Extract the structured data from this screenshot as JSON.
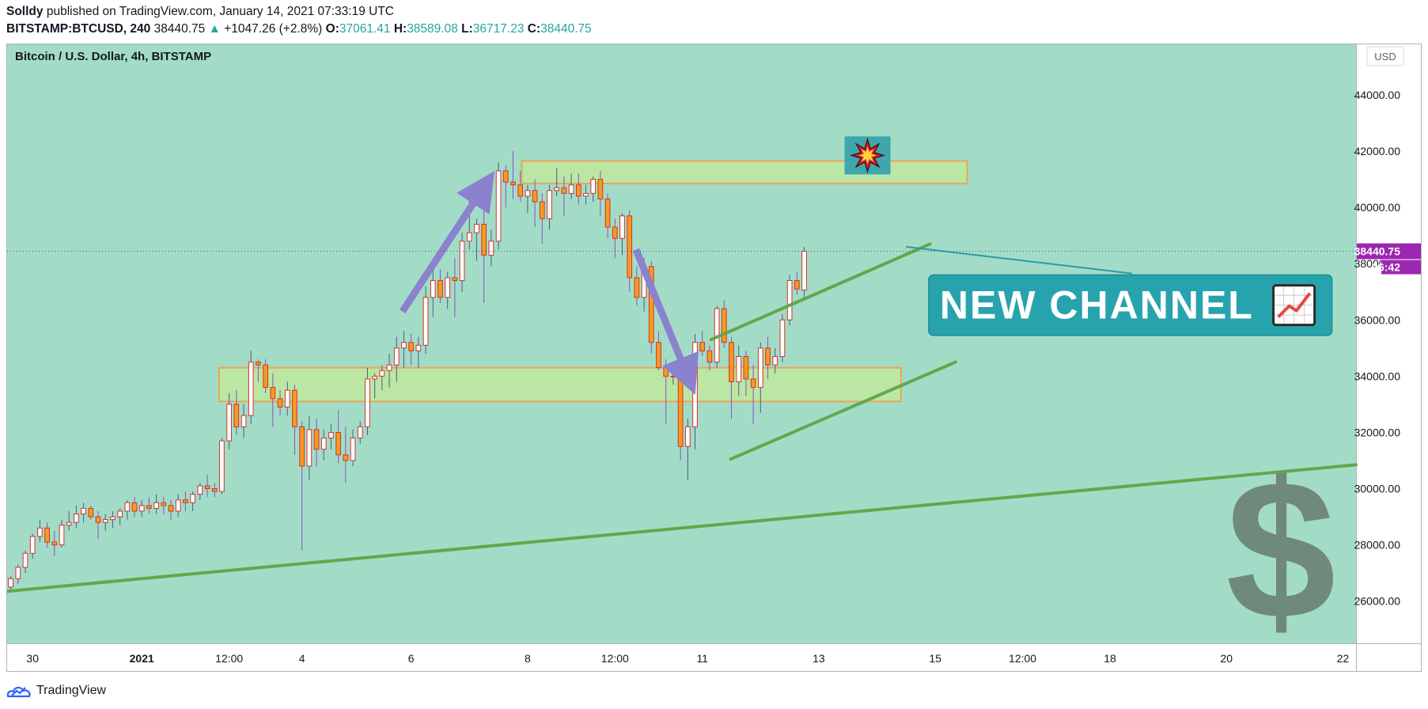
{
  "header": {
    "author": "Solldy",
    "published_text": "published on TradingView.com, January 14, 2021 07:33:19 UTC",
    "symbol": "BITSTAMP:BTCUSD, 240",
    "last": "38440.75",
    "up_arrow": "▲",
    "change": "+1047.26 (+2.8%)",
    "o_label": "O:",
    "o_value": "37061.41",
    "h_label": "H:",
    "h_value": "38589.08",
    "l_label": "L:",
    "l_value": "36717.23",
    "c_label": "C:",
    "c_value": "38440.75"
  },
  "footer": {
    "brand": "TradingView",
    "logo_icon": "tradingview-logo-icon"
  },
  "chart_data": {
    "type": "candlestick",
    "title": "Bitcoin / U.S. Dollar, 4h, BITSTAMP",
    "currency_label": "USD",
    "y_ticks": [
      26000,
      28000,
      30000,
      32000,
      34000,
      36000,
      38000,
      40000,
      42000,
      44000
    ],
    "ylim": [
      24500,
      45800
    ],
    "x_ticks": [
      {
        "label": "30",
        "index": 3
      },
      {
        "label": "2021",
        "index": 18
      },
      {
        "label": "12:00",
        "index": 30
      },
      {
        "label": "4",
        "index": 40
      },
      {
        "label": "6",
        "index": 55
      },
      {
        "label": "8",
        "index": 71
      },
      {
        "label": "12:00",
        "index": 83
      },
      {
        "label": "11",
        "index": 95
      },
      {
        "label": "13",
        "index": 111
      },
      {
        "label": "15",
        "index": 127
      },
      {
        "label": "12:00",
        "index": 139
      },
      {
        "label": "18",
        "index": 151
      },
      {
        "label": "20",
        "index": 167
      },
      {
        "label": "22",
        "index": 183
      }
    ],
    "x_range": [
      -0.5,
      184.8
    ],
    "last_price": 38440.75,
    "last_price_label": "38440.75",
    "countdown_label": "26:42",
    "candles": [
      [
        26500,
        26900,
        26300,
        26800
      ],
      [
        26800,
        27300,
        26600,
        27200
      ],
      [
        27200,
        27800,
        27000,
        27700
      ],
      [
        27700,
        28400,
        27500,
        28300
      ],
      [
        28300,
        28900,
        28100,
        28600
      ],
      [
        28600,
        28800,
        27900,
        28100
      ],
      [
        28100,
        28500,
        27600,
        28000
      ],
      [
        28000,
        28900,
        27900,
        28700
      ],
      [
        28700,
        29200,
        28500,
        28800
      ],
      [
        28800,
        29400,
        28600,
        29100
      ],
      [
        29100,
        29500,
        28800,
        29300
      ],
      [
        29300,
        29400,
        28900,
        29000
      ],
      [
        29000,
        29200,
        28200,
        28800
      ],
      [
        28800,
        29100,
        28500,
        28900
      ],
      [
        28900,
        29200,
        28600,
        29000
      ],
      [
        29000,
        29300,
        28700,
        29200
      ],
      [
        29200,
        29600,
        28900,
        29500
      ],
      [
        29500,
        29700,
        29000,
        29200
      ],
      [
        29200,
        29600,
        29000,
        29400
      ],
      [
        29400,
        29700,
        29100,
        29300
      ],
      [
        29300,
        29800,
        29100,
        29500
      ],
      [
        29500,
        29700,
        29100,
        29400
      ],
      [
        29400,
        29600,
        28900,
        29200
      ],
      [
        29200,
        29800,
        29000,
        29600
      ],
      [
        29600,
        29900,
        29200,
        29500
      ],
      [
        29500,
        29900,
        29200,
        29800
      ],
      [
        29800,
        30200,
        29600,
        30100
      ],
      [
        30100,
        30500,
        29700,
        30000
      ],
      [
        30000,
        30200,
        29700,
        29900
      ],
      [
        29900,
        31800,
        29800,
        31700
      ],
      [
        31700,
        33400,
        31400,
        33000
      ],
      [
        33000,
        33500,
        31900,
        32200
      ],
      [
        32200,
        33000,
        31800,
        32600
      ],
      [
        32600,
        34900,
        32300,
        34500
      ],
      [
        34500,
        34600,
        33800,
        34400
      ],
      [
        34400,
        34600,
        33400,
        33600
      ],
      [
        33600,
        34100,
        32200,
        33200
      ],
      [
        33200,
        33500,
        32600,
        32900
      ],
      [
        32900,
        33800,
        32600,
        33500
      ],
      [
        33500,
        33700,
        31200,
        32200
      ],
      [
        32200,
        32400,
        27800,
        30800
      ],
      [
        30800,
        32600,
        30300,
        32100
      ],
      [
        32100,
        32500,
        30800,
        31400
      ],
      [
        31400,
        32100,
        31000,
        31800
      ],
      [
        31800,
        32300,
        31400,
        32000
      ],
      [
        32000,
        32800,
        30900,
        31200
      ],
      [
        31200,
        32200,
        30200,
        31000
      ],
      [
        31000,
        32100,
        30800,
        31800
      ],
      [
        31800,
        32400,
        31600,
        32200
      ],
      [
        32200,
        34300,
        31900,
        33900
      ],
      [
        33900,
        34100,
        33200,
        34000
      ],
      [
        34000,
        34400,
        33500,
        34200
      ],
      [
        34200,
        34800,
        33600,
        34400
      ],
      [
        34400,
        35400,
        33800,
        35000
      ],
      [
        35000,
        35600,
        34300,
        35200
      ],
      [
        35200,
        35500,
        34400,
        34900
      ],
      [
        34900,
        35400,
        34300,
        35100
      ],
      [
        35100,
        37200,
        34800,
        36800
      ],
      [
        36800,
        37900,
        36100,
        37400
      ],
      [
        37400,
        37800,
        36600,
        36800
      ],
      [
        36800,
        37700,
        36400,
        37500
      ],
      [
        37500,
        38200,
        36100,
        37400
      ],
      [
        37400,
        39100,
        37000,
        38800
      ],
      [
        38800,
        40400,
        38500,
        39100
      ],
      [
        39100,
        39600,
        38100,
        39400
      ],
      [
        39400,
        39900,
        36600,
        38300
      ],
      [
        38300,
        39200,
        37900,
        38800
      ],
      [
        38800,
        41600,
        38500,
        41300
      ],
      [
        41300,
        41500,
        40000,
        40900
      ],
      [
        40900,
        42000,
        40300,
        40800
      ],
      [
        40800,
        41300,
        40200,
        40400
      ],
      [
        40400,
        40800,
        39800,
        40600
      ],
      [
        40600,
        41000,
        39300,
        40200
      ],
      [
        40200,
        40500,
        38700,
        39600
      ],
      [
        39600,
        40800,
        39200,
        40600
      ],
      [
        40600,
        41400,
        40400,
        40700
      ],
      [
        40700,
        41100,
        39700,
        40500
      ],
      [
        40500,
        41200,
        40300,
        40800
      ],
      [
        40800,
        41200,
        40100,
        40400
      ],
      [
        40400,
        40800,
        40100,
        40500
      ],
      [
        40500,
        41100,
        40200,
        41000
      ],
      [
        41000,
        41300,
        39700,
        40300
      ],
      [
        40300,
        40500,
        38900,
        39300
      ],
      [
        39300,
        39600,
        38200,
        38900
      ],
      [
        38900,
        39800,
        38300,
        39700
      ],
      [
        39700,
        39900,
        37000,
        37500
      ],
      [
        37500,
        37900,
        36500,
        36800
      ],
      [
        36800,
        38200,
        36300,
        37900
      ],
      [
        37900,
        38100,
        34800,
        35200
      ],
      [
        35200,
        35600,
        34200,
        34300
      ],
      [
        34300,
        34600,
        32300,
        34000
      ],
      [
        34000,
        34400,
        33700,
        34000
      ],
      [
        34000,
        34200,
        31000,
        31500
      ],
      [
        31500,
        32500,
        30300,
        32200
      ],
      [
        32200,
        35500,
        31400,
        35200
      ],
      [
        35200,
        35600,
        34700,
        34900
      ],
      [
        34900,
        35100,
        34200,
        34500
      ],
      [
        34500,
        36500,
        34300,
        36400
      ],
      [
        36400,
        36700,
        35000,
        35200
      ],
      [
        35200,
        35400,
        32500,
        33800
      ],
      [
        33800,
        35100,
        33300,
        34700
      ],
      [
        34700,
        34900,
        33300,
        33900
      ],
      [
        33900,
        34400,
        32300,
        33600
      ],
      [
        33600,
        35200,
        32700,
        35000
      ],
      [
        35000,
        35400,
        33900,
        34400
      ],
      [
        34400,
        35000,
        34100,
        34700
      ],
      [
        34700,
        36200,
        34500,
        36000
      ],
      [
        36000,
        37600,
        35800,
        37400
      ],
      [
        37400,
        37700,
        36900,
        37100
      ],
      [
        37061.41,
        38589.08,
        36717.23,
        38440.75
      ]
    ],
    "zones": [
      {
        "x0": 70.2,
        "x1": 131.4,
        "y0": 40850,
        "y1": 41650
      },
      {
        "x0": 28.6,
        "x1": 122.3,
        "y0": 33100,
        "y1": 34300
      }
    ],
    "trendlines": [
      {
        "x0": -0.5,
        "y0": 26350,
        "x1": 184.8,
        "y1": 30850
      },
      {
        "x0": 96.2,
        "y0": 35300,
        "x1": 126.3,
        "y1": 38700
      },
      {
        "x0": 98.9,
        "y0": 31050,
        "x1": 129.8,
        "y1": 34500
      }
    ],
    "arrows": [
      {
        "from": [
          53.8,
          36300
        ],
        "to": [
          63.8,
          40250
        ]
      },
      {
        "from": [
          85.9,
          38500
        ],
        "to": [
          92.2,
          34500
        ]
      }
    ],
    "callout": {
      "text": "NEW CHANNEL",
      "chart_icon": "chart-increasing-icon",
      "x0": 126.1,
      "x1": 181.5,
      "y_top": 37600,
      "y_bottom": 35450,
      "pointer_from": [
        123.0,
        38600
      ],
      "pointer_to": [
        154.0,
        37650
      ]
    },
    "collision_icon": "collision-icon",
    "collision_pos": {
      "x": 117.7,
      "y": 41850
    },
    "watermark": "$"
  }
}
